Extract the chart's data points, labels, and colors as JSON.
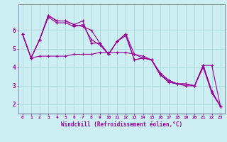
{
  "xlabel": "Windchill (Refroidissement éolien,°C)",
  "background_color": "#cdeef2",
  "line_color": "#990099",
  "grid_color": "#aadddd",
  "xlim": [
    -0.5,
    23.5
  ],
  "ylim": [
    1.5,
    7.4
  ],
  "xticks": [
    0,
    1,
    2,
    3,
    4,
    5,
    6,
    7,
    8,
    9,
    10,
    11,
    12,
    13,
    14,
    15,
    16,
    17,
    18,
    19,
    20,
    21,
    22,
    23
  ],
  "yticks": [
    2,
    3,
    4,
    5,
    6
  ],
  "series": [
    [
      5.8,
      4.5,
      4.6,
      4.6,
      4.6,
      4.6,
      4.7,
      4.7,
      4.7,
      4.8,
      4.8,
      4.8,
      4.8,
      4.7,
      4.6,
      4.4,
      3.6,
      3.3,
      3.1,
      3.1,
      3.0,
      4.1,
      4.1,
      1.9
    ],
    [
      5.8,
      4.5,
      5.5,
      6.8,
      6.5,
      6.5,
      6.3,
      6.2,
      6.0,
      5.3,
      4.7,
      5.4,
      5.8,
      4.7,
      4.5,
      4.4,
      3.7,
      3.3,
      3.1,
      3.1,
      3.0,
      4.1,
      2.7,
      1.9
    ],
    [
      5.8,
      4.5,
      5.5,
      6.8,
      6.5,
      6.5,
      6.3,
      6.5,
      5.3,
      5.3,
      4.7,
      5.4,
      5.8,
      4.4,
      4.5,
      4.4,
      3.6,
      3.2,
      3.1,
      3.1,
      3.0,
      4.1,
      2.7,
      1.9
    ],
    [
      5.8,
      4.5,
      5.5,
      6.7,
      6.4,
      6.4,
      6.2,
      6.3,
      5.5,
      5.2,
      4.7,
      5.4,
      5.7,
      4.4,
      4.5,
      4.4,
      3.6,
      3.2,
      3.1,
      3.0,
      3.0,
      4.0,
      2.6,
      1.9
    ]
  ]
}
